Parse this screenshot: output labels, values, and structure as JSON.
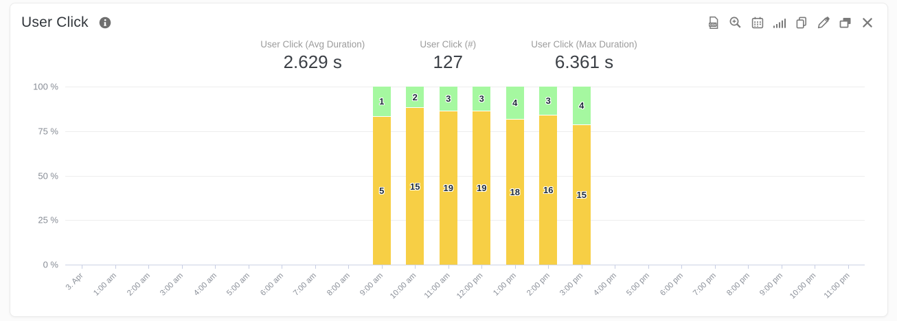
{
  "header": {
    "title": "User Click",
    "info_icon": "info-circle",
    "toolbar_icons": [
      "export-csv",
      "zoom-in",
      "calendar",
      "chart-bars",
      "copy",
      "edit",
      "windows",
      "close"
    ]
  },
  "stats": [
    {
      "label": "User Click (Avg Duration)",
      "value": "2.629 s"
    },
    {
      "label": "User Click (#)",
      "value": "127"
    },
    {
      "label": "User Click (Max Duration)",
      "value": "6.361 s"
    }
  ],
  "chart_data": {
    "type": "bar",
    "stacked": true,
    "ylabel": "",
    "xlabel": "",
    "ylim": [
      0,
      100
    ],
    "grid": true,
    "legend": false,
    "yticks": [
      {
        "label": "100 %",
        "value": 100
      },
      {
        "label": "75 %",
        "value": 75
      },
      {
        "label": "50 %",
        "value": 50
      },
      {
        "label": "25 %",
        "value": 25
      },
      {
        "label": "0 %",
        "value": 0
      }
    ],
    "categories": [
      "3. Apr",
      "1:00 am",
      "2:00 am",
      "3:00 am",
      "4:00 am",
      "5:00 am",
      "6:00 am",
      "7:00 am",
      "8:00 am",
      "9:00 am",
      "10:00 am",
      "11:00 am",
      "12:00 pm",
      "1:00 pm",
      "2:00 pm",
      "3:00 pm",
      "4:00 pm",
      "5:00 pm",
      "6:00 pm",
      "7:00 pm",
      "8:00 pm",
      "9:00 pm",
      "10:00 pm",
      "11:00 pm"
    ],
    "series": [
      {
        "name": "lower-count",
        "color": "#f7cf45",
        "values": [
          null,
          null,
          null,
          null,
          null,
          null,
          null,
          null,
          null,
          5,
          15,
          19,
          19,
          18,
          16,
          15,
          null,
          null,
          null,
          null,
          null,
          null,
          null,
          null
        ]
      },
      {
        "name": "upper-count",
        "color": "#a5f8a0",
        "values": [
          null,
          null,
          null,
          null,
          null,
          null,
          null,
          null,
          null,
          1,
          2,
          3,
          3,
          4,
          3,
          4,
          null,
          null,
          null,
          null,
          null,
          null,
          null,
          null
        ]
      }
    ]
  },
  "colors": {
    "bar_yellow": "#f7cf45",
    "bar_green": "#a5f8a0",
    "gridline": "#ededed",
    "axis": "#ccd2e4",
    "title_text": "#32373c",
    "stat_label_text": "#9b9b9b",
    "stat_value_text": "#3c4046",
    "axis_text": "#8b9099",
    "icon_gray": "#7a7a7a"
  }
}
